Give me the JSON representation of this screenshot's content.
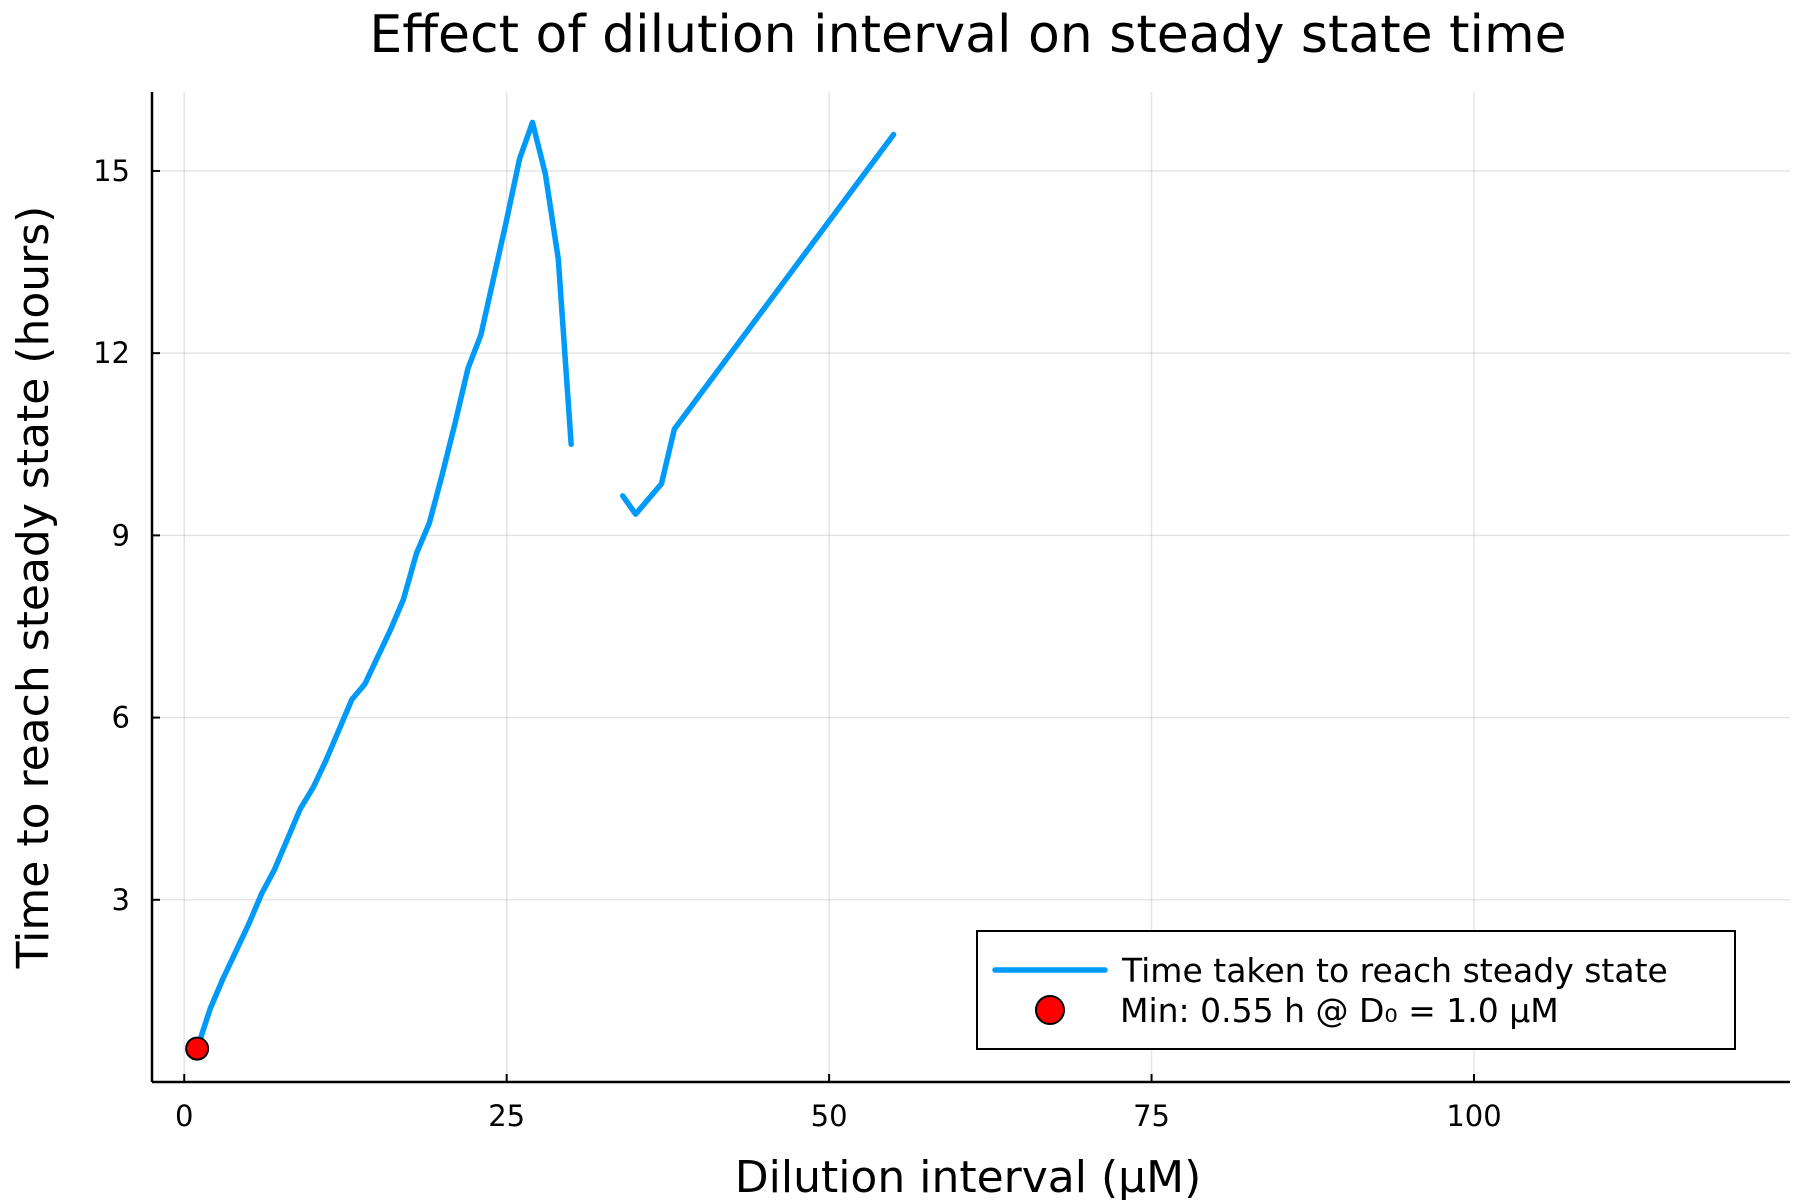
{
  "chart_data": {
    "type": "line",
    "title": "Effect of dilution interval on steady state time",
    "xlabel": "Dilution interval (μM)",
    "ylabel": "Time to reach steady state (hours)",
    "xlim": [
      -2.5,
      124.5
    ],
    "ylim": [
      0.0,
      16.3
    ],
    "xticks": [
      0,
      25,
      50,
      75,
      100
    ],
    "yticks": [
      3,
      6,
      9,
      12,
      15
    ],
    "grid": true,
    "legend_position": "bottom-right",
    "series": [
      {
        "name": "Time taken to reach steady state",
        "color": "#009af9",
        "segments": [
          {
            "x": [
              1,
              2,
              3,
              4,
              5,
              6,
              7,
              8,
              9,
              10,
              11,
              12,
              13,
              14,
              15,
              16,
              17,
              18,
              19,
              20,
              21,
              22,
              23,
              24,
              25,
              26,
              27,
              28,
              29,
              30
            ],
            "y": [
              0.55,
              1.2,
              1.7,
              2.15,
              2.6,
              3.1,
              3.5,
              4.0,
              4.5,
              4.85,
              5.3,
              5.8,
              6.3,
              6.55,
              7.0,
              7.45,
              7.95,
              8.7,
              9.2,
              10.0,
              10.85,
              11.75,
              12.3,
              13.25,
              14.2,
              15.2,
              15.8,
              14.95,
              13.55,
              10.5
            ]
          },
          {
            "x": [
              34,
              35,
              36,
              37,
              38,
              55
            ],
            "y": [
              9.65,
              9.35,
              9.6,
              9.85,
              10.75,
              15.6
            ]
          }
        ]
      },
      {
        "name": "Min: 0.55 h @ D₀ = 1.0 μM",
        "type": "scatter",
        "color": "#ff0000",
        "x": [
          1.0
        ],
        "y": [
          0.55
        ]
      }
    ]
  }
}
